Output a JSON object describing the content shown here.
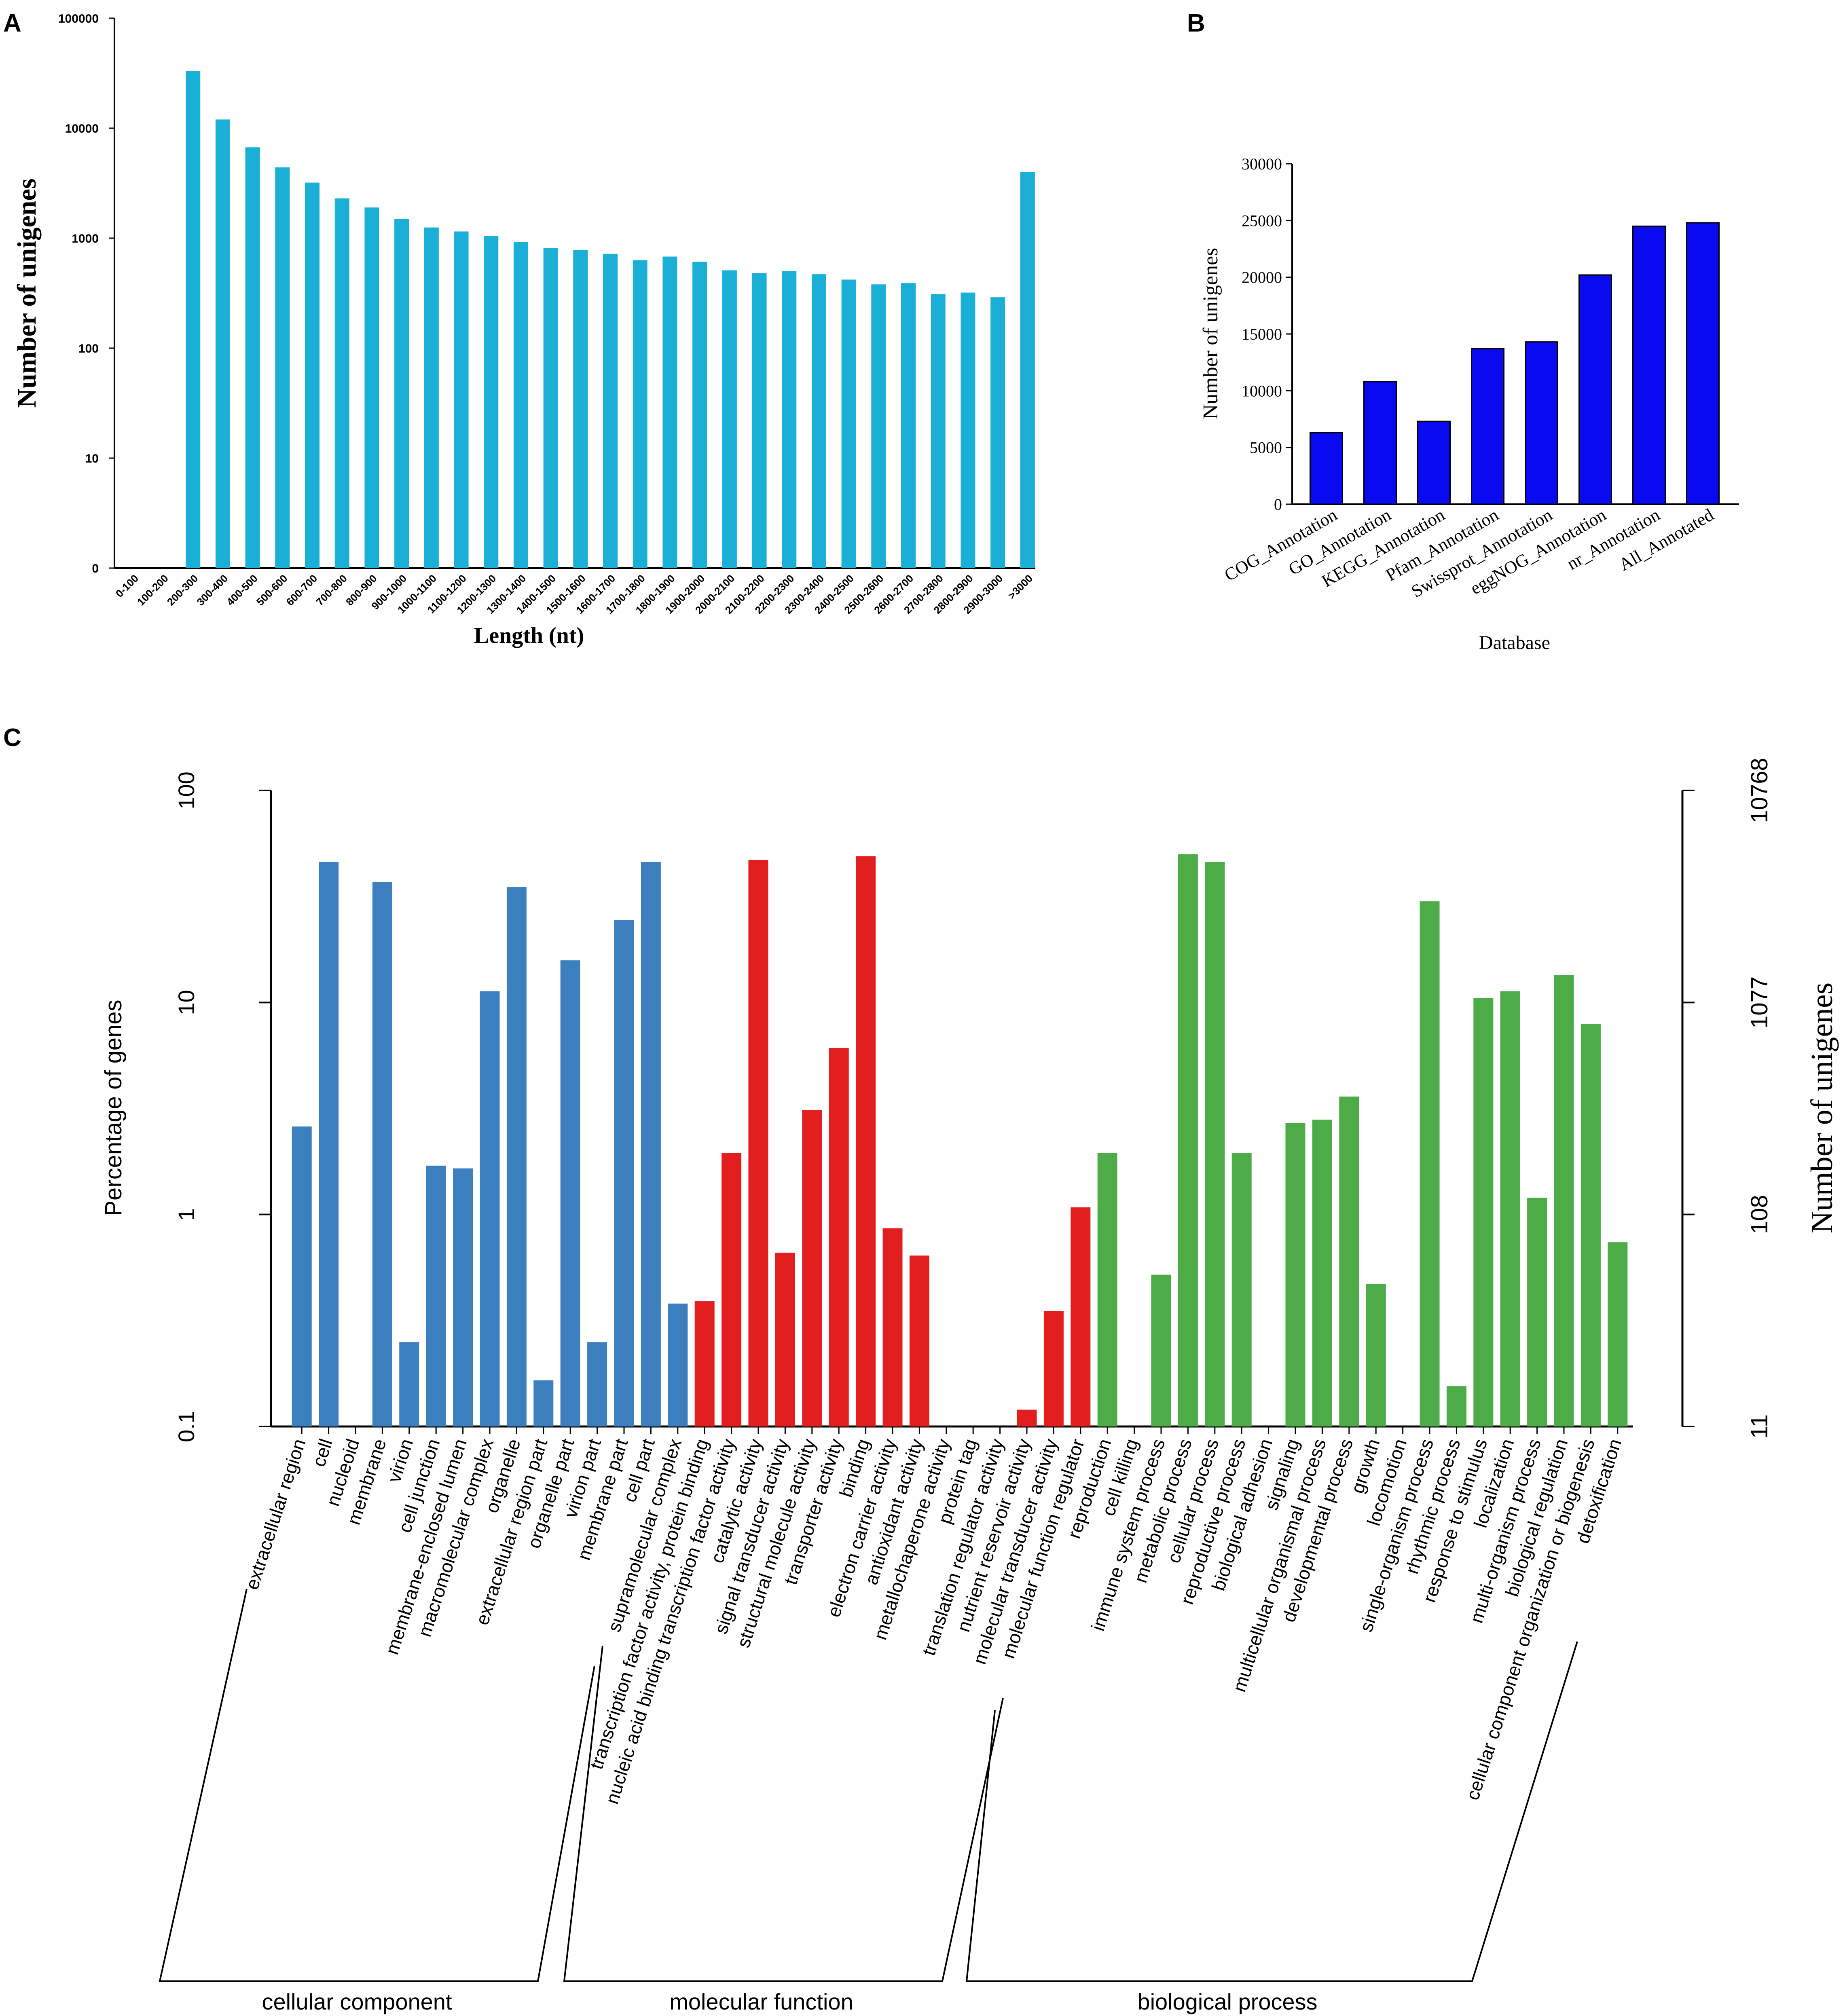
{
  "chart_data": [
    {
      "panel": "A",
      "type": "bar",
      "yscale": "log",
      "xlabel": "Length (nt)",
      "ylabel": "Number of unigenes",
      "yticks": [
        0,
        10,
        100,
        1000,
        10000,
        100000
      ],
      "yticklabels": [
        "0",
        "10",
        "100",
        "1000",
        "10000",
        "100000"
      ],
      "color": "#1AAFD7",
      "categories": [
        "0-100",
        "100-200",
        "200-300",
        "300-400",
        "400-500",
        "500-600",
        "600-700",
        "700-800",
        "800-900",
        "900-1000",
        "1000-1100",
        "1100-1200",
        "1200-1300",
        "1300-1400",
        "1400-1500",
        "1500-1600",
        "1600-1700",
        "1700-1800",
        "1800-1900",
        "1900-2000",
        "2000-2100",
        "2100-2200",
        "2200-2300",
        "2300-2400",
        "2400-2500",
        "2500-2600",
        "2600-2700",
        "2700-2800",
        "2800-2900",
        "2900-3000",
        ">3000"
      ],
      "values": [
        0,
        0,
        33000,
        12000,
        6700,
        4400,
        3200,
        2300,
        1900,
        1500,
        1250,
        1150,
        1050,
        920,
        810,
        780,
        720,
        630,
        680,
        610,
        510,
        480,
        500,
        470,
        420,
        380,
        390,
        310,
        320,
        290,
        4000
      ]
    },
    {
      "panel": "B",
      "type": "bar",
      "xlabel": "Database",
      "ylabel": "Number of unigenes",
      "ylim": [
        0,
        30000
      ],
      "yticks": [
        0,
        5000,
        10000,
        15000,
        20000,
        25000,
        30000
      ],
      "yticklabels": [
        "0",
        "5000",
        "10000",
        "15000",
        "20000",
        "25000",
        "30000"
      ],
      "color": "#0A0AF0",
      "categories": [
        "COG_Annotation",
        "GO_Annotation",
        "KEGG_Annotation",
        "Pfam_Annotation",
        "Swissprot_Annotation",
        "eggNOG_Annotation",
        "nr_Annotation",
        "All_Annotated"
      ],
      "values": [
        6300,
        10800,
        7300,
        13700,
        14300,
        20200,
        24500,
        24800
      ]
    },
    {
      "panel": "C",
      "type": "bar",
      "yscale": "log",
      "ylabel": "Percentage of genes",
      "ylabel_right": "Number of unigenes",
      "ylim": [
        0.1,
        100
      ],
      "yticks": [
        0.1,
        1,
        10,
        100
      ],
      "yticklabels": [
        "0.1",
        "1",
        "10",
        "100"
      ],
      "right_ticklabels": [
        "11",
        "108",
        "1077",
        "10768"
      ],
      "groups": [
        {
          "name": "cellular component",
          "color": "#3C7FBF",
          "categories": [
            "extracellular region",
            "cell",
            "nucleoid",
            "membrane",
            "virion",
            "cell junction",
            "membrane-enclosed lumen",
            "macromolecular complex",
            "organelle",
            "extracellular region part",
            "organelle part",
            "virion part",
            "membrane part",
            "cell part",
            "supramolecular complex"
          ],
          "values": [
            2.6,
            46,
            0,
            37,
            0.25,
            1.7,
            1.65,
            11.3,
            35,
            0.165,
            15.8,
            0.25,
            24.5,
            46,
            0.38
          ]
        },
        {
          "name": "molecular function",
          "color": "#E31E1E",
          "categories": [
            "transcription factor activity, protein binding",
            "nucleic acid binding transcription factor activity",
            "catalytic activity",
            "signal transducer activity",
            "structural molecule activity",
            "transporter activity",
            "binding",
            "electron carrier activity",
            "antioxidant activity",
            "metallochaperone activity",
            "protein tag",
            "translation regulator activity",
            "nutrient reservoir activity",
            "molecular transducer activity",
            "molecular function regulator"
          ],
          "values": [
            0.39,
            1.95,
            47,
            0.66,
            3.1,
            6.1,
            49,
            0.86,
            0.64,
            0,
            0,
            0,
            0.12,
            0.35,
            1.08
          ]
        },
        {
          "name": "biological process",
          "color": "#4DAB48",
          "categories": [
            "reproduction",
            "cell killing",
            "immune system process",
            "metabolic process",
            "cellular process",
            "reproductive process",
            "biological adhesion",
            "signaling",
            "multicellular organismal process",
            "developmental process",
            "growth",
            "locomotion",
            "single-organism process",
            "rhythmic process",
            "response to stimulus",
            "localization",
            "multi-organism process",
            "biological regulation",
            "cellular component organization or biogenesis",
            "detoxification"
          ],
          "values": [
            1.95,
            0,
            0.52,
            50,
            46,
            1.95,
            0,
            2.7,
            2.8,
            3.6,
            0.47,
            0,
            30,
            0.155,
            10.5,
            11.3,
            1.2,
            13.5,
            7.9,
            0.74
          ]
        }
      ]
    }
  ],
  "panel_labels": {
    "a": "A",
    "b": "B",
    "c": "C"
  }
}
